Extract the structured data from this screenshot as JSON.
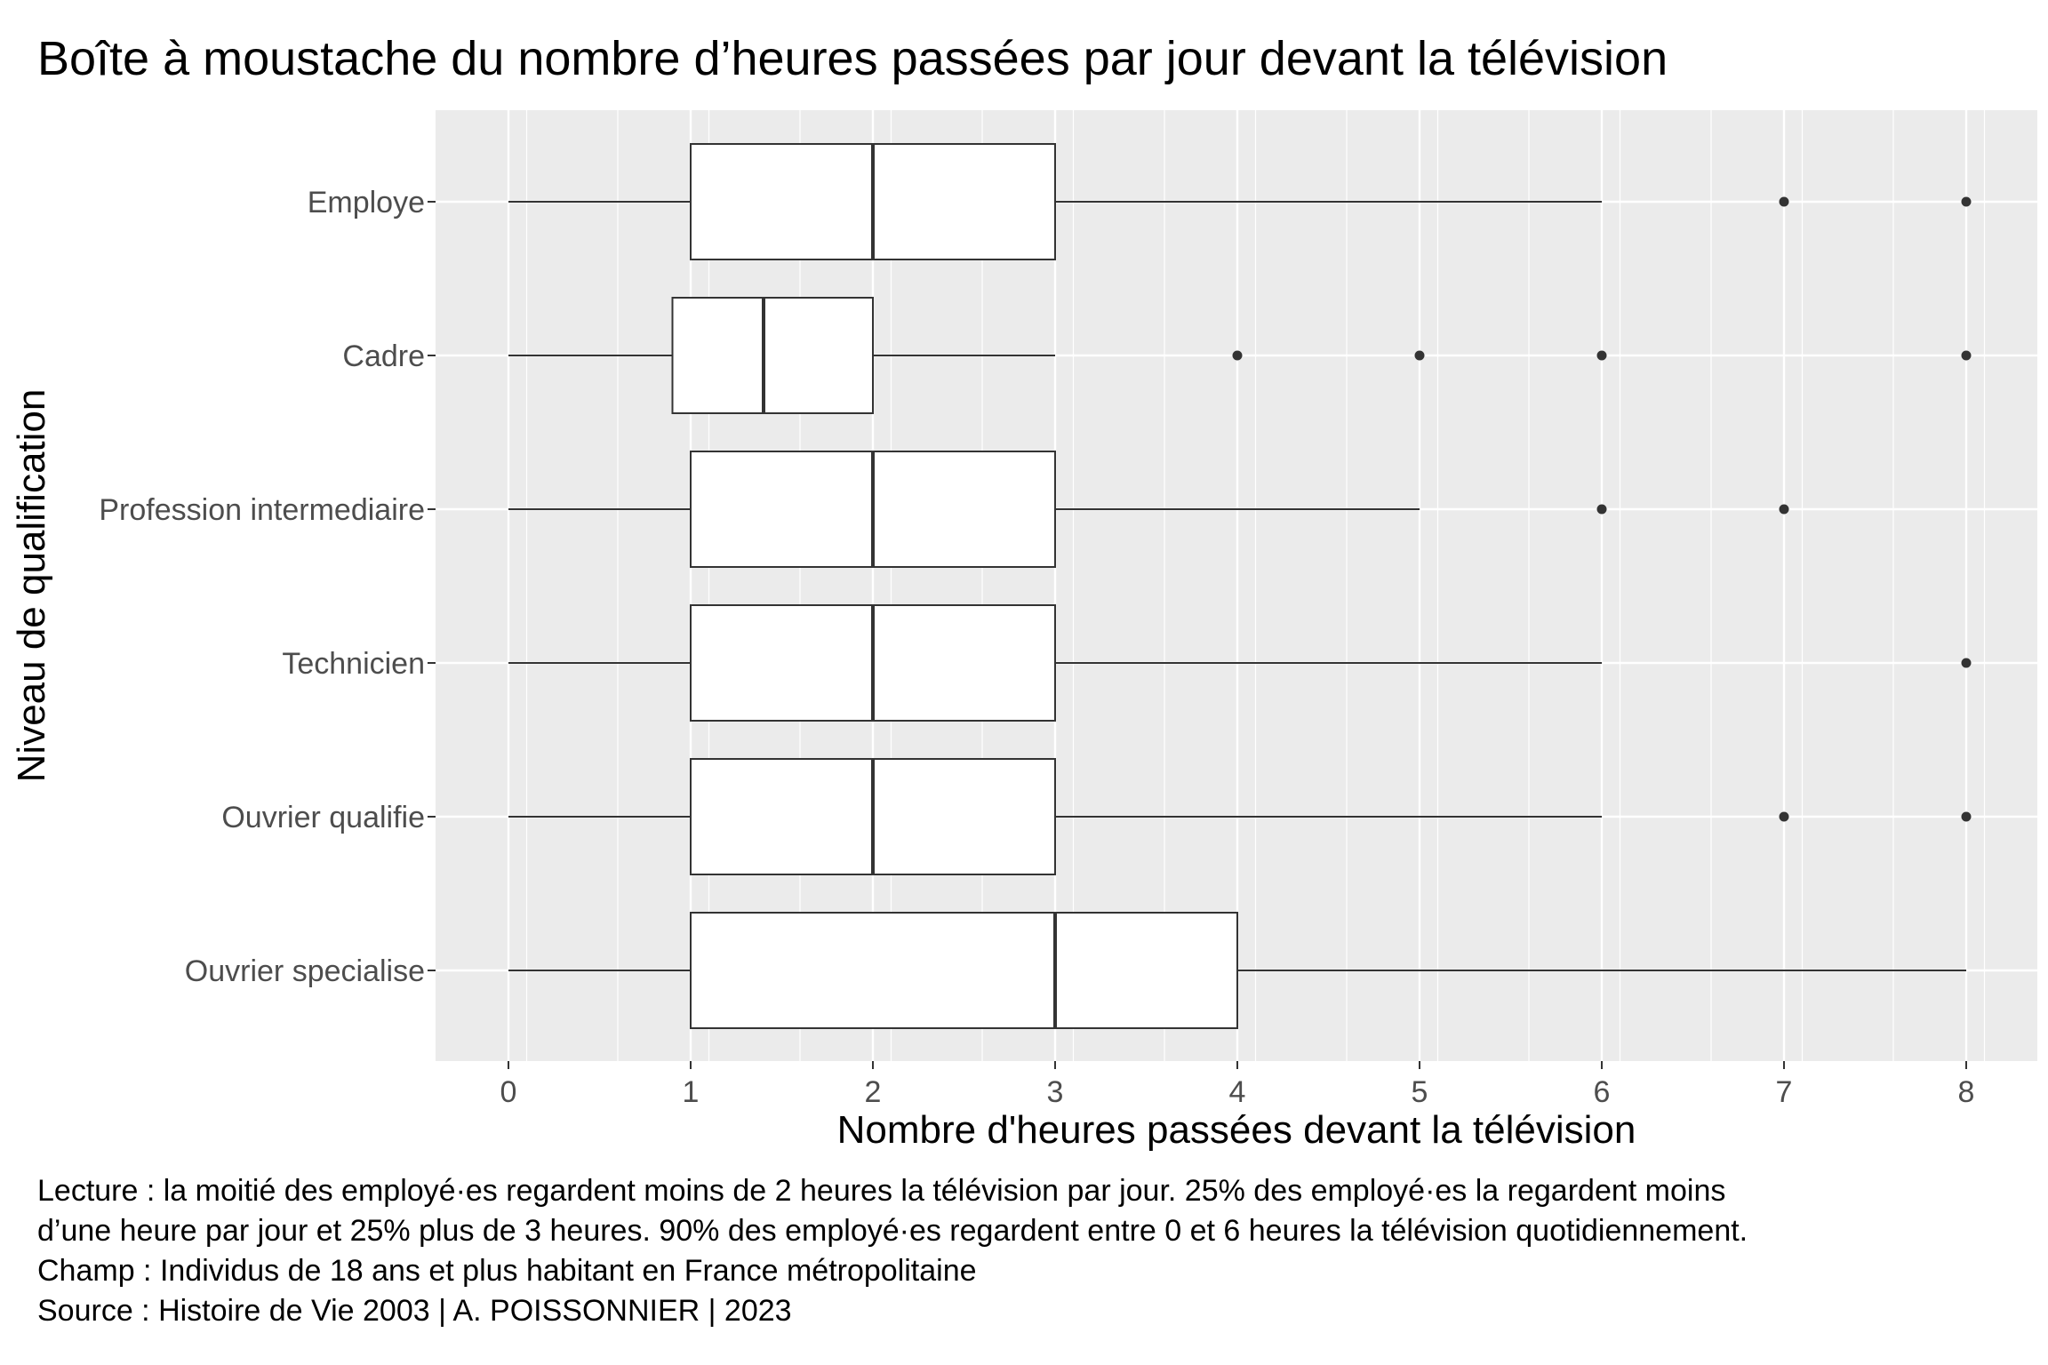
{
  "chart_data": {
    "type": "boxplot",
    "orientation": "horizontal",
    "title": "Boîte à moustache du nombre d’heures passées par jour devant la télévision",
    "xlabel": "Nombre d'heures passées devant la télévision",
    "ylabel": "Niveau de qualification",
    "xlim": [
      -0.4,
      8.4
    ],
    "x_ticks": [
      0,
      1,
      2,
      3,
      4,
      5,
      6,
      7,
      8
    ],
    "grid": true,
    "categories": [
      {
        "name": "Employe",
        "whisker_low": 0,
        "q1": 1,
        "median": 2,
        "q3": 3,
        "whisker_high": 6,
        "outliers": [
          7,
          8
        ]
      },
      {
        "name": "Cadre",
        "whisker_low": 0,
        "q1": 0.9,
        "median": 1.4,
        "q3": 2,
        "whisker_high": 3,
        "outliers": [
          4,
          5,
          6,
          8
        ]
      },
      {
        "name": "Profession intermediaire",
        "whisker_low": 0,
        "q1": 1,
        "median": 2,
        "q3": 3,
        "whisker_high": 5,
        "outliers": [
          6,
          7
        ]
      },
      {
        "name": "Technicien",
        "whisker_low": 0,
        "q1": 1,
        "median": 2,
        "q3": 3,
        "whisker_high": 6,
        "outliers": [
          8
        ]
      },
      {
        "name": "Ouvrier qualifie",
        "whisker_low": 0,
        "q1": 1,
        "median": 2,
        "q3": 3,
        "whisker_high": 6,
        "outliers": [
          7,
          8
        ]
      },
      {
        "name": "Ouvrier specialise",
        "whisker_low": 0,
        "q1": 1,
        "median": 3,
        "q3": 4,
        "whisker_high": 8,
        "outliers": []
      }
    ],
    "colors": {
      "panel_background": "#ebebeb",
      "grid": "#ffffff",
      "box_fill": "#ffffff",
      "box_stroke": "#333333",
      "outlier": "#333333"
    }
  },
  "caption": {
    "lines": [
      "Lecture : la moitié des employé·es regardent moins de 2 heures la télévision par jour. 25% des employé·es la regardent moins",
      "d’une heure par jour et 25% plus de 3 heures. 90% des employé·es regardent entre 0 et 6 heures la télévision quotidiennement.",
      "Champ : Individus de 18 ans et plus habitant en France métropolitaine",
      "Source : Histoire de Vie 2003 | A. POISSONNIER | 2023"
    ]
  }
}
